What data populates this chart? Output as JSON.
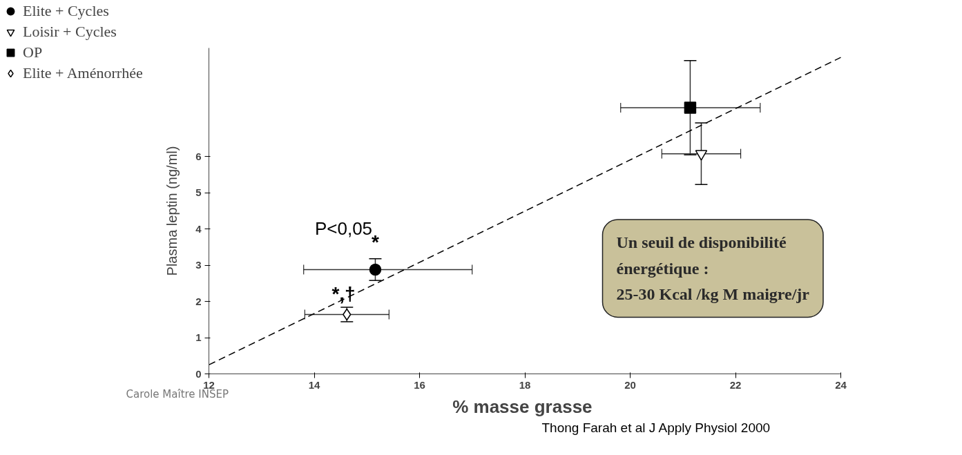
{
  "chart_data": {
    "type": "scatter",
    "xlabel": "%  masse grasse",
    "ylabel": "Plasma leptin (ng/ml)",
    "xlim": [
      12,
      24
    ],
    "ylim": [
      0,
      9
    ],
    "xticks": [
      12,
      14,
      16,
      18,
      20,
      22,
      24
    ],
    "yticks": [
      0,
      1,
      2,
      3,
      4,
      5,
      6
    ],
    "grid": false,
    "legend": "top left",
    "series": [
      {
        "name": "Elite + Cycles",
        "marker": "circle",
        "color": "#000000",
        "x": [
          15.16
        ],
        "values": [
          2.88
        ],
        "errors": [
          0.3
        ],
        "xerrors": [
          [
            13.8,
            17.0
          ]
        ]
      },
      {
        "name": "Loisir + Cycles",
        "marker": "triangle",
        "color": "#ffffff",
        "x": [
          21.35
        ],
        "values": [
          6.08
        ],
        "errors": [
          0.85
        ],
        "xerrors": [
          0.75
        ]
      },
      {
        "name": "OP",
        "marker": "square",
        "color": "#000000",
        "x": [
          21.14
        ],
        "values": [
          7.35
        ],
        "errors": [
          1.3
        ],
        "xerrors": [
          [
            19.82,
            22.47
          ]
        ]
      },
      {
        "name": "Elite + Aménorrhée",
        "marker": "diamond",
        "color": "#ffffff",
        "x": [
          14.62
        ],
        "values": [
          1.64
        ],
        "errors": [
          0.2
        ],
        "xerrors": [
          0.8
        ]
      },
      {
        "type": "line",
        "line_style": "dashed",
        "color": "#000000",
        "x": [
          12,
          24
        ],
        "values": [
          0.25,
          8.74
        ]
      }
    ],
    "annotations": [
      "*",
      "P<0,05",
      "*,†",
      "Un seuil de disponibilité\nénergétique :\n25-30 Kcal /kg M maigre/jr",
      "Carole Maître INSEP",
      "Thong Farah et al J Apply Physiol 2000"
    ]
  }
}
